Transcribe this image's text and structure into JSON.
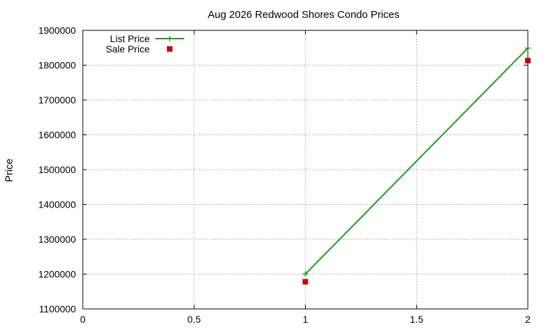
{
  "chart_data": {
    "type": "line",
    "title": "Aug 2026 Redwood Shores Condo Prices",
    "xlabel": "",
    "ylabel": "Price",
    "xlim": [
      0,
      2
    ],
    "ylim": [
      1100000,
      1900000
    ],
    "x_ticks": [
      "0",
      "0.5",
      "1",
      "1.5",
      "2"
    ],
    "y_ticks": [
      "1100000",
      "1200000",
      "1300000",
      "1400000",
      "1500000",
      "1600000",
      "1700000",
      "1800000",
      "1900000"
    ],
    "grid": true,
    "legend_position": "top-left",
    "series": [
      {
        "name": "List Price",
        "style": "line-with-plus",
        "color": "#1a9e1a",
        "x": [
          1,
          2
        ],
        "y": [
          1200000,
          1849000
        ]
      },
      {
        "name": "Sale Price",
        "style": "square-markers",
        "color": "#cc0000",
        "x": [
          1,
          2
        ],
        "y": [
          1178000,
          1813000
        ]
      }
    ]
  }
}
